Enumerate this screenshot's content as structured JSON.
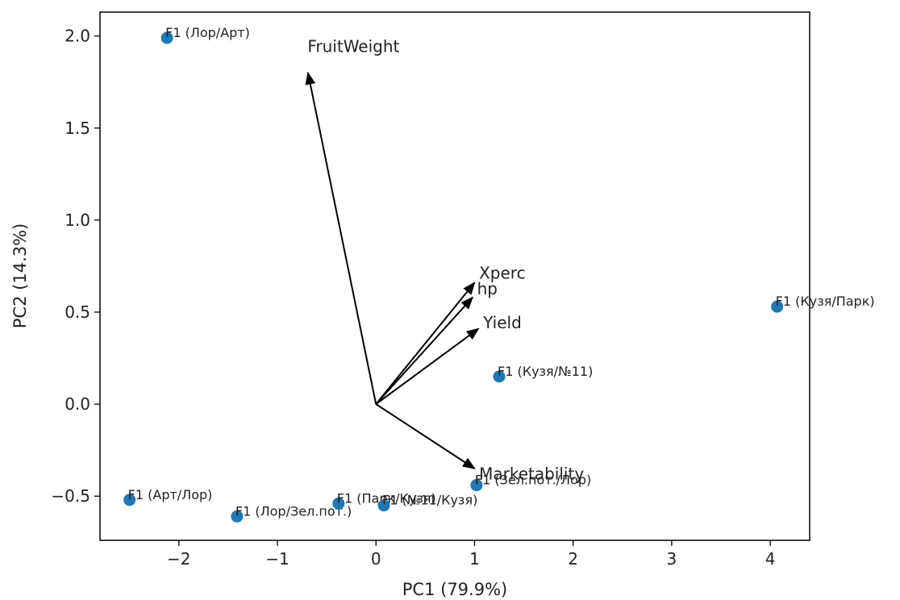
{
  "chart_data": {
    "type": "scatter",
    "title": "",
    "xlabel": "PC1 (79.9%)",
    "ylabel": "PC2 (14.3%)",
    "xlim": [
      -2.8,
      4.4
    ],
    "ylim": [
      -0.74,
      2.13
    ],
    "xticks": [
      -2,
      -1,
      0,
      1,
      2,
      3,
      4
    ],
    "xtick_labels": [
      "−2",
      "−1",
      "0",
      "1",
      "2",
      "3",
      "4"
    ],
    "yticks": [
      -0.5,
      0.0,
      0.5,
      1.0,
      1.5,
      2.0
    ],
    "ytick_labels": [
      "−0.5",
      "0.0",
      "0.5",
      "1.0",
      "1.5",
      "2.0"
    ],
    "grid": false,
    "point_color": "#1f77b4",
    "arrow_color": "#000000",
    "points": [
      {
        "label": "F1 (Лор/Арт)",
        "x": -2.12,
        "y": 1.99
      },
      {
        "label": "F1 (Кузя/Парк)",
        "x": 4.07,
        "y": 0.53
      },
      {
        "label": "F1 (Кузя/№11)",
        "x": 1.25,
        "y": 0.15
      },
      {
        "label": "F1 (Зел.пот./Лор)",
        "x": 1.02,
        "y": -0.44
      },
      {
        "label": "F1 (Арт/Лор)",
        "x": -2.5,
        "y": -0.52
      },
      {
        "label": "F1 (Лор/Зел.пот.)",
        "x": -1.41,
        "y": -0.61
      },
      {
        "label": "F1 (Парк/Кузя)",
        "x": -0.38,
        "y": -0.54
      },
      {
        "label": "F1 (№11/Кузя)",
        "x": 0.08,
        "y": -0.55
      }
    ],
    "vectors": [
      {
        "label": "FruitWeight",
        "x": -0.69,
        "y": 1.8
      },
      {
        "label": "Xperc",
        "x": 1.0,
        "y": 0.66
      },
      {
        "label": "hp",
        "x": 0.98,
        "y": 0.58
      },
      {
        "label": "Yield",
        "x": 1.04,
        "y": 0.41
      },
      {
        "label": "Marketability",
        "x": 1.0,
        "y": -0.35
      }
    ]
  }
}
